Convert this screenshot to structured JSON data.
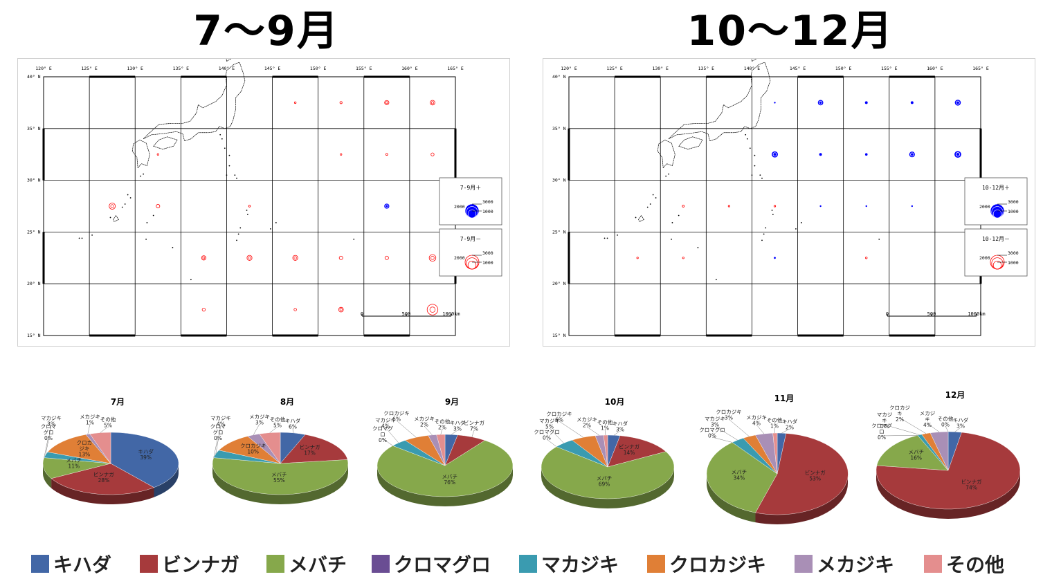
{
  "titles": {
    "left": "7～9月",
    "right": "10～12月"
  },
  "maps": [
    {
      "lon_labels": [
        "120° E",
        "125° E",
        "130° E",
        "135° E",
        "140° E",
        "145° E",
        "150° E",
        "155° E",
        "160° E",
        "165° E"
      ],
      "lat_labels": [
        "40° N",
        "35° N",
        "30° N",
        "25° N",
        "20° N",
        "15° N"
      ],
      "scale_labels": [
        "0",
        "500",
        "1000km"
      ],
      "legend_plus": {
        "title": "7-9月＋",
        "v1": "3000",
        "v2": "2000",
        "v3": "1000"
      },
      "legend_minus": {
        "title": "7-9月－",
        "v1": "3000",
        "v2": "2000",
        "v3": "1000"
      },
      "symbols": [
        {
          "lon": 147.5,
          "lat": 37.5,
          "sign": "-",
          "value": 50
        },
        {
          "lon": 152.5,
          "lat": 37.5,
          "sign": "-",
          "value": 80
        },
        {
          "lon": 157.5,
          "lat": 37.5,
          "sign": "-",
          "value": 300
        },
        {
          "lon": 162.5,
          "lat": 37.5,
          "sign": "-",
          "value": 350
        },
        {
          "lon": 132.5,
          "lat": 32.5,
          "sign": "-",
          "value": 30
        },
        {
          "lon": 152.5,
          "lat": 32.5,
          "sign": "-",
          "value": 30
        },
        {
          "lon": 157.5,
          "lat": 32.5,
          "sign": "-",
          "value": 60
        },
        {
          "lon": 162.5,
          "lat": 32.5,
          "sign": "-",
          "value": 150
        },
        {
          "lon": 127.5,
          "lat": 27.5,
          "sign": "-",
          "value": 600
        },
        {
          "lon": 132.5,
          "lat": 27.5,
          "sign": "-",
          "value": 200
        },
        {
          "lon": 142.5,
          "lat": 27.5,
          "sign": "-",
          "value": 50
        },
        {
          "lon": 157.5,
          "lat": 27.5,
          "sign": "+",
          "value": 400
        },
        {
          "lon": 137.5,
          "lat": 22.5,
          "sign": "-",
          "value": 300
        },
        {
          "lon": 142.5,
          "lat": 22.5,
          "sign": "-",
          "value": 400
        },
        {
          "lon": 147.5,
          "lat": 22.5,
          "sign": "-",
          "value": 400
        },
        {
          "lon": 152.5,
          "lat": 22.5,
          "sign": "-",
          "value": 200
        },
        {
          "lon": 157.5,
          "lat": 22.5,
          "sign": "-",
          "value": 200
        },
        {
          "lon": 162.5,
          "lat": 22.5,
          "sign": "-",
          "value": 700
        },
        {
          "lon": 137.5,
          "lat": 17.5,
          "sign": "-",
          "value": 150
        },
        {
          "lon": 147.5,
          "lat": 17.5,
          "sign": "-",
          "value": 100
        },
        {
          "lon": 152.5,
          "lat": 17.5,
          "sign": "-",
          "value": 350
        },
        {
          "lon": 162.5,
          "lat": 17.5,
          "sign": "-",
          "value": 1800
        }
      ]
    },
    {
      "lon_labels": [
        "120° E",
        "125° E",
        "130° E",
        "135° E",
        "140° E",
        "145° E",
        "150° E",
        "155° E",
        "160° E",
        "165° E"
      ],
      "lat_labels": [
        "40° N",
        "35° N",
        "30° N",
        "25° N",
        "20° N",
        "15° N"
      ],
      "scale_labels": [
        "0",
        "500",
        "1000km"
      ],
      "legend_plus": {
        "title": "10-12月＋",
        "v1": "3000",
        "v2": "2000",
        "v3": "1000"
      },
      "legend_minus": {
        "title": "10-12月－",
        "v1": "3000",
        "v2": "2000",
        "v3": "1000"
      },
      "symbols": [
        {
          "lon": 142.5,
          "lat": 37.5,
          "sign": "+",
          "value": 20
        },
        {
          "lon": 147.5,
          "lat": 37.5,
          "sign": "+",
          "value": 450
        },
        {
          "lon": 152.5,
          "lat": 37.5,
          "sign": "+",
          "value": 120
        },
        {
          "lon": 157.5,
          "lat": 37.5,
          "sign": "+",
          "value": 120
        },
        {
          "lon": 162.5,
          "lat": 37.5,
          "sign": "+",
          "value": 550
        },
        {
          "lon": 142.5,
          "lat": 32.5,
          "sign": "+",
          "value": 600
        },
        {
          "lon": 147.5,
          "lat": 32.5,
          "sign": "+",
          "value": 120
        },
        {
          "lon": 152.5,
          "lat": 32.5,
          "sign": "+",
          "value": 100
        },
        {
          "lon": 157.5,
          "lat": 32.5,
          "sign": "+",
          "value": 500
        },
        {
          "lon": 162.5,
          "lat": 32.5,
          "sign": "+",
          "value": 700
        },
        {
          "lon": 132.5,
          "lat": 27.5,
          "sign": "-",
          "value": 60
        },
        {
          "lon": 137.5,
          "lat": 27.5,
          "sign": "-",
          "value": 20
        },
        {
          "lon": 142.5,
          "lat": 27.5,
          "sign": "-",
          "value": 20
        },
        {
          "lon": 147.5,
          "lat": 27.5,
          "sign": "+",
          "value": 10
        },
        {
          "lon": 152.5,
          "lat": 27.5,
          "sign": "+",
          "value": 10
        },
        {
          "lon": 157.5,
          "lat": 27.5,
          "sign": "+",
          "value": 10
        },
        {
          "lon": 127.5,
          "lat": 22.5,
          "sign": "-",
          "value": 40
        },
        {
          "lon": 132.5,
          "lat": 22.5,
          "sign": "-",
          "value": 10
        },
        {
          "lon": 142.5,
          "lat": 22.5,
          "sign": "+",
          "value": 60
        },
        {
          "lon": 152.5,
          "lat": 22.5,
          "sign": "-",
          "value": 50
        }
      ]
    }
  ],
  "chart_data": [
    {
      "type": "pie",
      "title": "7月",
      "categories": [
        "キハダ",
        "ビンナガ",
        "メバチ",
        "クロマグロ",
        "マカジキ",
        "クロカジキ",
        "メカジキ",
        "その他"
      ],
      "values": [
        39,
        28,
        11,
        0,
        3,
        13,
        1,
        5
      ],
      "labels": [
        "キハダ\n39%",
        "ビンナガ\n28%",
        "メバチ\n11%",
        "クロマ\nグロ\n0%",
        "マカジキ\n3%",
        "クロカ\nジキ\n13%",
        "メカジキ\n1%",
        "その他\n5%"
      ]
    },
    {
      "type": "pie",
      "title": "8月",
      "categories": [
        "キハダ",
        "ビンナガ",
        "メバチ",
        "クロマグロ",
        "マカジキ",
        "クロカジキ",
        "メカジキ",
        "その他"
      ],
      "values": [
        6,
        17,
        55,
        0,
        4,
        10,
        3,
        5
      ],
      "labels": [
        "キハダ\n6%",
        "ビンナガ\n17%",
        "メバチ\n55%",
        "クロマ\nグロ\n0%",
        "マカジキ\n4%",
        "クロカジキ\n10%",
        "メカジキ\n3%",
        "その他\n5%"
      ]
    },
    {
      "type": "pie",
      "title": "9月",
      "categories": [
        "キハダ",
        "ビンナガ",
        "メバチ",
        "クロマグロ",
        "マカジキ",
        "クロカジキ",
        "メカジキ",
        "その他"
      ],
      "values": [
        3,
        7,
        76,
        0,
        4,
        6,
        2,
        2
      ],
      "labels": [
        "キハダ\n3%",
        "ビンナガ\n7%",
        "メバチ\n76%",
        "クロマグ\nロ\n0%",
        "マカジキ\n4%",
        "クロカジキ\n6%",
        "メカジキ\n2%",
        "その他\n2%"
      ]
    },
    {
      "type": "pie",
      "title": "10月",
      "categories": [
        "キハダ",
        "ビンナガ",
        "メバチ",
        "クロマグロ",
        "マカジキ",
        "クロカジキ",
        "メカジキ",
        "その他"
      ],
      "values": [
        3,
        14,
        69,
        0,
        5,
        6,
        2,
        1
      ],
      "labels": [
        "キハダ\n3%",
        "ビンナガ\n14%",
        "メバチ\n69%",
        "クロマグロ\n0%",
        "マカジキ\n5%",
        "クロカジキ\n6%",
        "メカジキ\n2%",
        "その他\n1%"
      ]
    },
    {
      "type": "pie",
      "title": "11月",
      "categories": [
        "キハダ",
        "ビンナガ",
        "メバチ",
        "クロマグロ",
        "マカジキ",
        "クロカジキ",
        "メカジキ",
        "その他"
      ],
      "values": [
        2,
        53,
        34,
        0,
        3,
        3,
        4,
        1
      ],
      "labels": [
        "キハダ\n2%",
        "ビンナガ\n53%",
        "メバチ\n34%",
        "クロマグロ\n0%",
        "マカジキ\n3%",
        "クロカジキ\n3%",
        "メカジキ\n4%",
        "その他\n1%"
      ]
    },
    {
      "type": "pie",
      "title": "12月",
      "categories": [
        "キハダ",
        "ビンナガ",
        "メバチ",
        "クロマグロ",
        "マカジキ",
        "クロカジキ",
        "メカジキ",
        "その他"
      ],
      "values": [
        3,
        74,
        16,
        0,
        1,
        2,
        4,
        0
      ],
      "labels": [
        "キハダ\n3%",
        "ビンナガ\n74%",
        "メバチ\n16%",
        "クロマグ\nロ\n0%",
        "マカジ\nキ\n1%",
        "クロカジ\nキ\n2%",
        "メカジ\nキ\n4%",
        "その他\n0%"
      ]
    }
  ],
  "legend": [
    {
      "label": "キハダ",
      "color": "#4267A6"
    },
    {
      "label": "ビンナガ",
      "color": "#A63A3C"
    },
    {
      "label": "メバチ",
      "color": "#86A84B"
    },
    {
      "label": "クロマグロ",
      "color": "#6A4D93"
    },
    {
      "label": "マカジキ",
      "color": "#3A9BB0"
    },
    {
      "label": "クロカジキ",
      "color": "#E07F36"
    },
    {
      "label": "メカジキ",
      "color": "#A98FB6"
    },
    {
      "label": "その他",
      "color": "#E48E8E"
    }
  ]
}
